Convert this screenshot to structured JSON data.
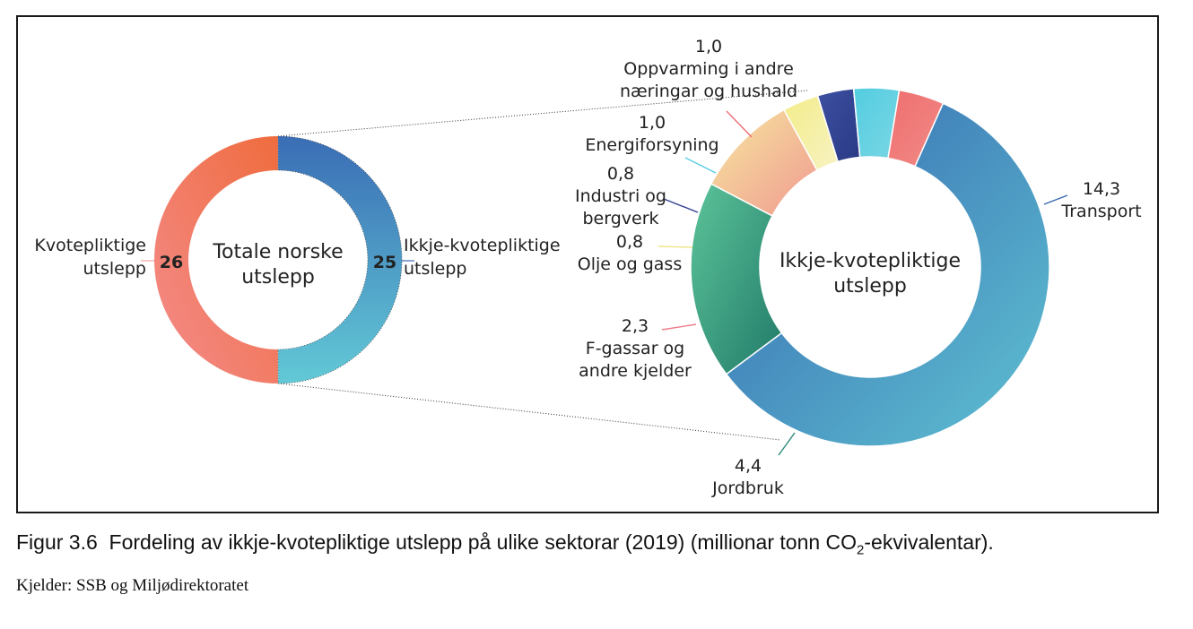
{
  "caption": {
    "figure_label": "Figur 3.6",
    "text_before_sub": "Fordeling av ikkje-kvotepliktige utslepp på ulike sektorar (2019) (millionar tonn CO",
    "sub": "2",
    "text_after_sub": "-ekvivalentar).",
    "source": "Kjelder: SSB og Miljødirektoratet"
  },
  "chart_data": [
    {
      "type": "pie",
      "title": "Totale norske utslepp",
      "title_lines": [
        "Totale norske",
        "utslepp"
      ],
      "slices": [
        {
          "label": "Ikkje-kvotepliktige utslepp",
          "label_lines": [
            "Ikkje-kvotepliktige",
            "utslepp"
          ],
          "value": 25,
          "value_label": "25",
          "color_start": "#3a6db5",
          "color_end": "#62c9d6",
          "leader_color": "#3a6db5"
        },
        {
          "label": "Kvotepliktige utslepp",
          "label_lines": [
            "Kvotepliktige",
            "utslepp"
          ],
          "value": 26,
          "value_label": "26",
          "color_start": "#f48c8c",
          "color_end": "#ef6c3e",
          "leader_color": "#f4a3a3"
        }
      ]
    },
    {
      "type": "pie",
      "title": "Ikkje-kvotepliktige utslepp",
      "title_lines": [
        "Ikkje-kvotepliktige",
        "utslepp"
      ],
      "slices": [
        {
          "label": "Transport",
          "label_lines": [
            "14,3",
            "Transport"
          ],
          "value": 14.3,
          "color_start": "#3567b0",
          "color_end": "#5fc1d2",
          "leader_color": "#3567b0"
        },
        {
          "label": "Jordbruk",
          "label_lines": [
            "4,4",
            "Jordbruk"
          ],
          "value": 4.4,
          "color_start": "#5cc49a",
          "color_end": "#217a68",
          "leader_color": "#2a8a78"
        },
        {
          "label": "F-gassar og andre kjelder",
          "label_lines": [
            "2,3",
            "F-gassar og",
            "andre kjelder"
          ],
          "value": 2.3,
          "color_start": "#f6e7a0",
          "color_end": "#f09a90",
          "leader_color": "#ef7b88"
        },
        {
          "label": "Olje og gass",
          "label_lines": [
            "0,8",
            "Olje og gass"
          ],
          "value": 0.8,
          "color_start": "#f3ec8a",
          "color_end": "#f7f3c2",
          "leader_color": "#ede58a"
        },
        {
          "label": "Industri og bergverk",
          "label_lines": [
            "0,8",
            "Industri og",
            "bergverk"
          ],
          "value": 0.8,
          "color_start": "#3d4fa0",
          "color_end": "#293a86",
          "leader_color": "#2f3f8f"
        },
        {
          "label": "Energiforsyning",
          "label_lines": [
            "1,0",
            "Energiforsyning"
          ],
          "value": 1.0,
          "color_start": "#52cde0",
          "color_end": "#7ad6e4",
          "leader_color": "#58cbe0"
        },
        {
          "label": "Oppvarming i andre næringar og hushald",
          "label_lines": [
            "1,0",
            "Oppvarming i andre",
            "næringar og hushald"
          ],
          "value": 1.0,
          "color_start": "#ef6f70",
          "color_end": "#f08a85",
          "leader_color": "#ee6d76"
        }
      ]
    }
  ]
}
